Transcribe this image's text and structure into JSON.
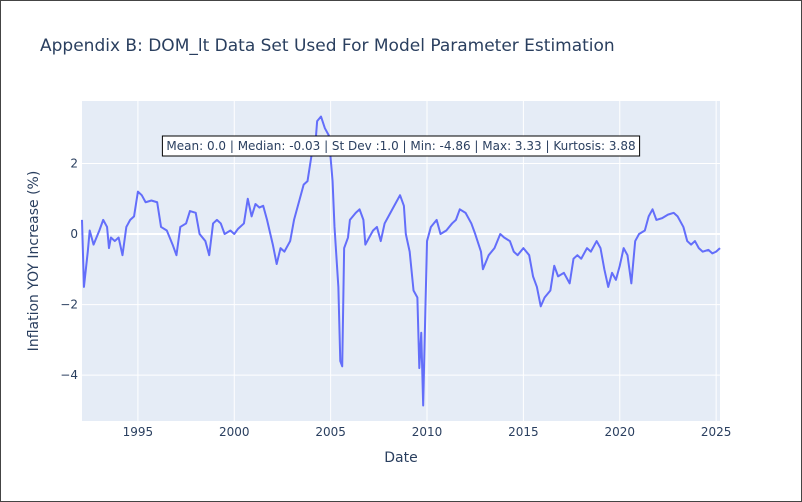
{
  "chart_data": {
    "type": "line",
    "title": "Appendix B: DOM_lt Data Set Used For Model Parameter Estimation",
    "annotation": "Mean: 0.0 | Median: -0.03 | St Dev :1.0 | Min: -4.86 | Max: 3.33 | Kurtosis: 3.88",
    "x_label": "Date",
    "y_label": "Inflation YOY Increase (%)",
    "xlim": [
      1992.1,
      2025.2
    ],
    "ylim": [
      -5.3,
      3.77
    ],
    "xticks": [
      1995,
      2000,
      2005,
      2010,
      2015,
      2020,
      2025
    ],
    "yticks": [
      {
        "value": -4,
        "label": "−4"
      },
      {
        "value": -2,
        "label": "−2"
      },
      0,
      2
    ],
    "grid": true,
    "series": [
      {
        "color": "#636efa",
        "x": [
          1992.1,
          1992.2,
          1992.4,
          1992.5,
          1992.7,
          1993.0,
          1993.2,
          1993.4,
          1993.5,
          1993.6,
          1993.8,
          1994.0,
          1994.2,
          1994.4,
          1994.6,
          1994.8,
          1995.0,
          1995.2,
          1995.4,
          1995.7,
          1996.0,
          1996.2,
          1996.5,
          1996.8,
          1997.0,
          1997.2,
          1997.5,
          1997.7,
          1998.0,
          1998.2,
          1998.5,
          1998.7,
          1998.9,
          1999.1,
          1999.3,
          1999.5,
          1999.8,
          2000.0,
          2000.2,
          2000.5,
          2000.7,
          2000.9,
          2001.1,
          2001.3,
          2001.5,
          2001.7,
          2002.0,
          2002.2,
          2002.4,
          2002.6,
          2002.9,
          2003.1,
          2003.4,
          2003.6,
          2003.8,
          2004.0,
          2004.2,
          2004.3,
          2004.5,
          2004.7,
          2004.9,
          2005.1,
          2005.2,
          2005.4,
          2005.5,
          2005.6,
          2005.7,
          2005.9,
          2006.0,
          2006.3,
          2006.5,
          2006.7,
          2006.8,
          2007.0,
          2007.2,
          2007.4,
          2007.6,
          2007.8,
          2008.0,
          2008.3,
          2008.6,
          2008.8,
          2008.9,
          2009.1,
          2009.3,
          2009.5,
          2009.6,
          2009.7,
          2009.8,
          2009.9,
          2010.0,
          2010.2,
          2010.5,
          2010.7,
          2011.0,
          2011.3,
          2011.5,
          2011.7,
          2012.0,
          2012.3,
          2012.5,
          2012.8,
          2012.9,
          2013.2,
          2013.5,
          2013.8,
          2014.0,
          2014.3,
          2014.5,
          2014.7,
          2015.0,
          2015.3,
          2015.5,
          2015.7,
          2015.9,
          2016.1,
          2016.4,
          2016.6,
          2016.8,
          2017.1,
          2017.4,
          2017.6,
          2017.8,
          2018.0,
          2018.3,
          2018.5,
          2018.8,
          2019.0,
          2019.2,
          2019.4,
          2019.6,
          2019.8,
          2020.0,
          2020.2,
          2020.4,
          2020.6,
          2020.8,
          2021.0,
          2021.3,
          2021.5,
          2021.7,
          2021.9,
          2022.2,
          2022.5,
          2022.8,
          2023.0,
          2023.3,
          2023.5,
          2023.7,
          2023.9,
          2024.1,
          2024.3,
          2024.6,
          2024.8,
          2025.0,
          2025.2
        ],
        "values": [
          0.4,
          -1.5,
          -0.5,
          0.1,
          -0.3,
          0.1,
          0.4,
          0.2,
          -0.4,
          -0.1,
          -0.2,
          -0.1,
          -0.6,
          0.2,
          0.4,
          0.5,
          1.2,
          1.1,
          0.9,
          0.95,
          0.9,
          0.2,
          0.1,
          -0.3,
          -0.6,
          0.2,
          0.3,
          0.65,
          0.6,
          0.0,
          -0.2,
          -0.6,
          0.3,
          0.4,
          0.3,
          0.0,
          0.1,
          0.0,
          0.15,
          0.3,
          1.0,
          0.5,
          0.85,
          0.75,
          0.8,
          0.4,
          -0.3,
          -0.85,
          -0.4,
          -0.5,
          -0.2,
          0.4,
          1.0,
          1.4,
          1.5,
          2.2,
          2.5,
          3.2,
          3.33,
          3.0,
          2.8,
          1.5,
          0.2,
          -1.5,
          -3.6,
          -3.75,
          -0.4,
          -0.1,
          0.4,
          0.6,
          0.7,
          0.4,
          -0.3,
          -0.1,
          0.1,
          0.2,
          -0.2,
          0.3,
          0.5,
          0.8,
          1.1,
          0.8,
          0.0,
          -0.5,
          -1.6,
          -1.8,
          -3.8,
          -2.8,
          -4.86,
          -2.5,
          -0.2,
          0.2,
          0.4,
          0.0,
          0.1,
          0.3,
          0.4,
          0.7,
          0.6,
          0.3,
          0.0,
          -0.5,
          -1.0,
          -0.6,
          -0.4,
          0.0,
          -0.1,
          -0.2,
          -0.5,
          -0.6,
          -0.4,
          -0.6,
          -1.2,
          -1.5,
          -2.05,
          -1.8,
          -1.6,
          -0.9,
          -1.2,
          -1.1,
          -1.4,
          -0.7,
          -0.6,
          -0.7,
          -0.4,
          -0.5,
          -0.2,
          -0.4,
          -1.0,
          -1.5,
          -1.1,
          -1.3,
          -0.9,
          -0.4,
          -0.6,
          -1.4,
          -0.2,
          0.0,
          0.1,
          0.5,
          0.7,
          0.4,
          0.45,
          0.55,
          0.6,
          0.5,
          0.2,
          -0.2,
          -0.3,
          -0.2,
          -0.4,
          -0.5,
          -0.45,
          -0.55,
          -0.5,
          -0.4
        ]
      }
    ]
  }
}
